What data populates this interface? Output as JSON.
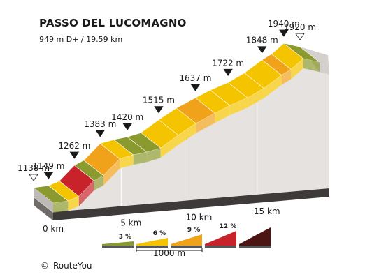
{
  "chart_data": {
    "type": "area",
    "title": "PASSO DEL LUCOMAGNO",
    "subtitle": "949 m D+ / 19.59 km",
    "x_unit": "km",
    "y_unit": "m",
    "profile": [
      {
        "x": 0.0,
        "y": 1138,
        "grade_class": "3"
      },
      {
        "x": 1.1,
        "y": 1149,
        "grade_class": "6"
      },
      {
        "x": 1.9,
        "y": 1175,
        "grade_class": "12"
      },
      {
        "x": 3.0,
        "y": 1262,
        "grade_class": "3"
      },
      {
        "x": 3.7,
        "y": 1290,
        "grade_class": "9"
      },
      {
        "x": 4.9,
        "y": 1383,
        "grade_class": "6"
      },
      {
        "x": 5.9,
        "y": 1405,
        "grade_class": "3"
      },
      {
        "x": 6.9,
        "y": 1420,
        "grade_class": "3"
      },
      {
        "x": 7.9,
        "y": 1443,
        "grade_class": "6"
      },
      {
        "x": 9.2,
        "y": 1515,
        "grade_class": "6"
      },
      {
        "x": 10.5,
        "y": 1580,
        "grade_class": "9"
      },
      {
        "x": 11.9,
        "y": 1637,
        "grade_class": "6"
      },
      {
        "x": 13.0,
        "y": 1680,
        "grade_class": "6"
      },
      {
        "x": 14.3,
        "y": 1722,
        "grade_class": "6"
      },
      {
        "x": 15.5,
        "y": 1775,
        "grade_class": "6"
      },
      {
        "x": 16.8,
        "y": 1848,
        "grade_class": "9"
      },
      {
        "x": 17.5,
        "y": 1880,
        "grade_class": "6"
      },
      {
        "x": 18.4,
        "y": 1940,
        "grade_class": "3"
      },
      {
        "x": 19.59,
        "y": 1920,
        "grade_class": "3"
      }
    ],
    "elevation_labels": [
      {
        "x": 0.0,
        "text": "1138 m",
        "marker": "open"
      },
      {
        "x": 1.1,
        "text": "1149 m",
        "marker": "filled"
      },
      {
        "x": 3.0,
        "text": "1262 m",
        "marker": "filled"
      },
      {
        "x": 4.9,
        "text": "1383 m",
        "marker": "filled"
      },
      {
        "x": 6.9,
        "text": "1420 m",
        "marker": "filled"
      },
      {
        "x": 9.2,
        "text": "1515 m",
        "marker": "filled"
      },
      {
        "x": 11.9,
        "text": "1637 m",
        "marker": "filled"
      },
      {
        "x": 14.3,
        "text": "1722 m",
        "marker": "filled"
      },
      {
        "x": 16.8,
        "text": "1848 m",
        "marker": "filled"
      },
      {
        "x": 18.4,
        "text": "1940 m",
        "marker": "filled"
      },
      {
        "x": 19.59,
        "text": "1920 m",
        "marker": "open"
      }
    ],
    "distance_ticks": [
      {
        "x": 0,
        "label": "0 km"
      },
      {
        "x": 5,
        "label": "5 km"
      },
      {
        "x": 10,
        "label": "10 km"
      },
      {
        "x": 15,
        "label": "15 km"
      }
    ],
    "legend": {
      "items": [
        {
          "label": "3 %",
          "color": "#8a9a2f"
        },
        {
          "label": "6 %",
          "color": "#f5c400"
        },
        {
          "label": "9 %",
          "color": "#f0a21a"
        },
        {
          "label": "12 %",
          "color": "#c8232a"
        },
        {
          "label": "",
          "color": "#4a1512"
        }
      ],
      "scale_label": "1000 m"
    },
    "colors": {
      "3": "#8a9a2f",
      "6": "#f5c400",
      "9": "#f0a21a",
      "12": "#c8232a",
      "top_light": "#e6d840",
      "ground": "#e6e2e0",
      "base": "#3d3a39"
    }
  },
  "credit": {
    "symbol": "©",
    "text": "RouteYou"
  }
}
